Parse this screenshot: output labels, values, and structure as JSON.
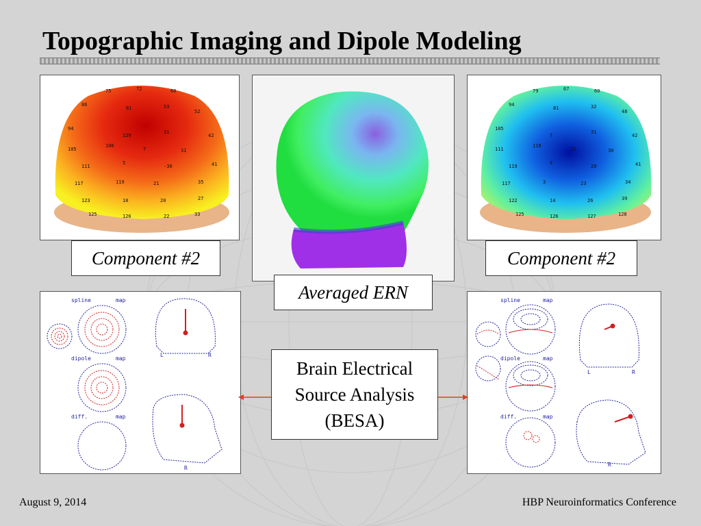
{
  "slide": {
    "title": "Topographic Imaging and Dipole Modeling",
    "captions": {
      "left": "Component #2",
      "right": "Component #2",
      "center": "Averaged ERN"
    },
    "besa": {
      "line1": "Brain Electrical",
      "line2": "Source Analysis",
      "line3": "(BESA)"
    },
    "footer": {
      "date": "August 9, 2014",
      "conference": "HBP Neuroinformatics Conference"
    },
    "dipole_labels": {
      "spline": "spline",
      "dipole": "dipole",
      "diff": "diff.",
      "map": "map",
      "L": "L",
      "R": "R"
    }
  }
}
